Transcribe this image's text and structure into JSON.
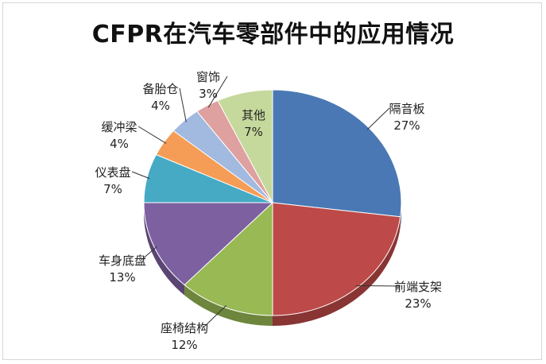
{
  "chart_data": {
    "type": "pie",
    "title": "CFPR在汽车零部件中的应用情况",
    "slices": [
      {
        "label": "隔音板",
        "value": 27,
        "percent_label": "27%",
        "color": "#4a78b5"
      },
      {
        "label": "前端支架",
        "value": 23,
        "percent_label": "23%",
        "color": "#bd4a48"
      },
      {
        "label": "座椅结构",
        "value": 12,
        "percent_label": "12%",
        "color": "#98b954"
      },
      {
        "label": "车身底盘",
        "value": 13,
        "percent_label": "13%",
        "color": "#7d60a0"
      },
      {
        "label": "仪表盘",
        "value": 7,
        "percent_label": "7%",
        "color": "#46aac5"
      },
      {
        "label": "缓冲梁",
        "value": 4,
        "percent_label": "4%",
        "color": "#f59d56"
      },
      {
        "label": "备胎仓",
        "value": 4,
        "percent_label": "4%",
        "color": "#a2b9e0"
      },
      {
        "label": "窗饰",
        "value": 3,
        "percent_label": "3%",
        "color": "#dfa0a0"
      },
      {
        "label": "其他",
        "value": 7,
        "percent_label": "7%",
        "color": "#c6d99c"
      }
    ],
    "start_angle_deg": 0,
    "direction": "clockwise",
    "style": "3d-pie",
    "legend": "none"
  }
}
